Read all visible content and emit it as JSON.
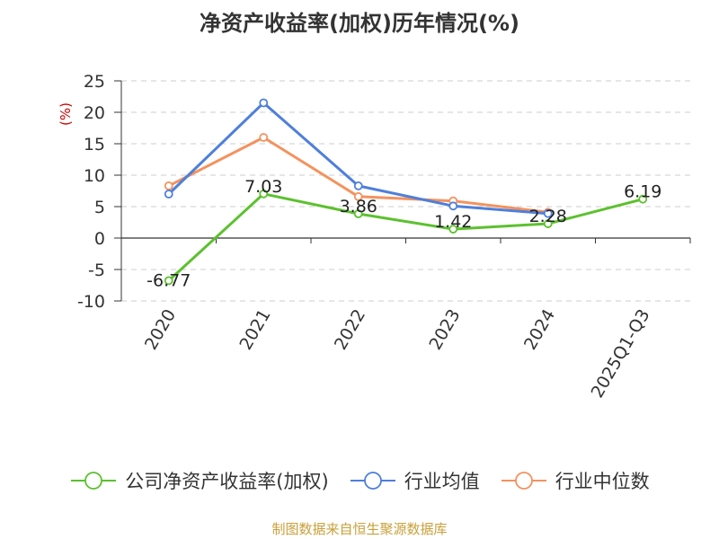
{
  "chart_data": {
    "type": "line",
    "title": "净资产收益率(加权)历年情况(%)",
    "ylabel": "(%)",
    "xlabel": "",
    "categories": [
      "2020",
      "2021",
      "2022",
      "2023",
      "2024",
      "2025Q1-Q3"
    ],
    "ylim": [
      -10,
      25
    ],
    "yticks": [
      25,
      20,
      15,
      10,
      5,
      0,
      -5,
      -10
    ],
    "grid": true,
    "legend_position": "bottom",
    "series": [
      {
        "name": "公司净资产收益率(加权)",
        "color": "#5cc12e",
        "values": [
          -6.77,
          7.03,
          3.86,
          1.42,
          2.28,
          6.19
        ],
        "labels": [
          "-6.77",
          "7.03",
          "3.86",
          "1.42",
          "2.28",
          "6.19"
        ]
      },
      {
        "name": "行业均值",
        "color": "#4e7fdb",
        "values": [
          7.0,
          21.5,
          8.3,
          5.1,
          3.9,
          null
        ]
      },
      {
        "name": "行业中位数",
        "color": "#f4925e",
        "values": [
          8.3,
          16.0,
          6.6,
          5.9,
          4.1,
          null
        ]
      }
    ]
  },
  "source": "制图数据来自恒生聚源数据库"
}
